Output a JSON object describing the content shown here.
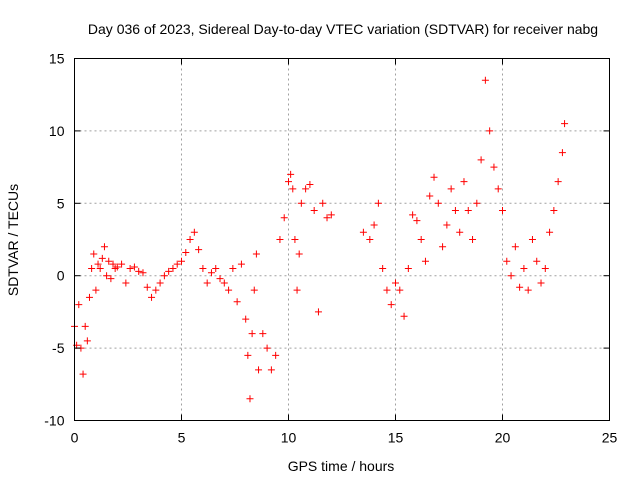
{
  "chart_data": {
    "type": "scatter",
    "title": "Day 036 of 2023, Sidereal Day-to-day VTEC variation (SDTVAR) for receiver nabg",
    "xlabel": "GPS time / hours",
    "ylabel": "SDTVAR / TECUs",
    "xlim": [
      0,
      25
    ],
    "ylim": [
      -10,
      15
    ],
    "xticks": [
      0,
      5,
      10,
      15,
      20,
      25
    ],
    "yticks": [
      -10,
      -5,
      0,
      5,
      10,
      15
    ],
    "grid": true,
    "marker": "+",
    "color": "#ff0000",
    "series": [
      {
        "name": "SDTVAR",
        "x": [
          0.0,
          0.1,
          0.2,
          0.3,
          0.4,
          0.5,
          0.6,
          0.7,
          0.8,
          0.9,
          1.0,
          1.1,
          1.2,
          1.3,
          1.4,
          1.5,
          1.6,
          1.7,
          1.8,
          1.9,
          2.0,
          2.2,
          2.4,
          2.6,
          2.8,
          3.0,
          3.2,
          3.4,
          3.6,
          3.8,
          4.0,
          4.2,
          4.4,
          4.6,
          4.8,
          5.0,
          5.2,
          5.4,
          5.6,
          5.8,
          6.0,
          6.2,
          6.4,
          6.6,
          6.8,
          7.0,
          7.2,
          7.4,
          7.6,
          7.8,
          8.0,
          8.1,
          8.2,
          8.3,
          8.4,
          8.5,
          8.6,
          8.8,
          9.0,
          9.2,
          9.4,
          9.6,
          9.8,
          10.0,
          10.1,
          10.2,
          10.3,
          10.4,
          10.5,
          10.6,
          10.8,
          11.0,
          11.2,
          11.4,
          11.6,
          11.8,
          12.0,
          13.5,
          13.8,
          14.0,
          14.2,
          14.4,
          14.6,
          14.8,
          15.0,
          15.2,
          15.4,
          15.6,
          15.8,
          16.0,
          16.2,
          16.4,
          16.6,
          16.8,
          17.0,
          17.2,
          17.4,
          17.6,
          17.8,
          18.0,
          18.2,
          18.4,
          18.6,
          18.8,
          19.0,
          19.2,
          19.4,
          19.6,
          19.8,
          20.0,
          20.2,
          20.4,
          20.6,
          20.8,
          21.0,
          21.2,
          21.4,
          21.6,
          21.8,
          22.0,
          22.2,
          22.4,
          22.6,
          22.8,
          22.9
        ],
        "y": [
          -3.5,
          -4.8,
          -2.0,
          -5.0,
          -6.8,
          -3.5,
          -4.5,
          -1.5,
          0.5,
          1.5,
          -1.0,
          0.8,
          0.5,
          1.2,
          2.0,
          0.0,
          1.0,
          -0.2,
          0.8,
          0.5,
          0.6,
          0.8,
          -0.5,
          0.5,
          0.6,
          0.3,
          0.2,
          -0.8,
          -1.5,
          -1.0,
          -0.5,
          0.0,
          0.3,
          0.5,
          0.8,
          1.0,
          1.6,
          2.5,
          3.0,
          1.8,
          0.5,
          -0.5,
          0.2,
          0.5,
          -0.2,
          -0.5,
          -1.0,
          0.5,
          -1.8,
          0.8,
          -3.0,
          -5.5,
          -8.5,
          -4.0,
          -1.0,
          1.5,
          -6.5,
          -4.0,
          -5.0,
          -6.5,
          -5.5,
          2.5,
          4.0,
          6.5,
          7.0,
          6.0,
          2.5,
          -1.0,
          1.5,
          5.0,
          6.0,
          6.3,
          4.5,
          -2.5,
          5.0,
          4.0,
          4.2,
          3.0,
          2.5,
          3.5,
          5.0,
          0.5,
          -1.0,
          -2.0,
          -0.5,
          -1.0,
          -2.8,
          0.5,
          4.2,
          3.8,
          2.5,
          1.0,
          5.5,
          6.8,
          5.0,
          2.0,
          3.5,
          6.0,
          4.5,
          3.0,
          6.5,
          4.5,
          2.5,
          5.0,
          8.0,
          13.5,
          10.0,
          7.5,
          6.0,
          4.5,
          1.0,
          0.0,
          2.0,
          -0.8,
          0.5,
          -1.0,
          2.5,
          1.0,
          -0.5,
          0.5,
          3.0,
          4.5,
          6.5,
          8.5,
          10.5
        ]
      }
    ]
  }
}
